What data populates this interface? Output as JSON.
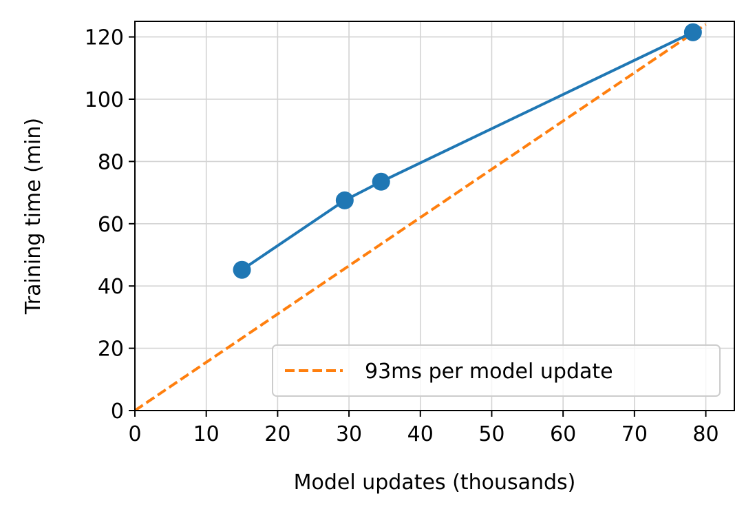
{
  "chart_data": {
    "type": "line",
    "xlabel": "Model updates (thousands)",
    "ylabel": "Training time (min)",
    "xlim": [
      0,
      84
    ],
    "ylim": [
      0,
      125
    ],
    "xticks": [
      0,
      10,
      20,
      30,
      40,
      50,
      60,
      70,
      80
    ],
    "yticks": [
      0,
      20,
      40,
      60,
      80,
      100,
      120
    ],
    "grid": true,
    "legend_position": "lower-right",
    "series": [
      {
        "style": "solid-with-markers",
        "color": "#1f77b4",
        "x": [
          15.0,
          29.4,
          34.5,
          78.2
        ],
        "y": [
          45.2,
          67.5,
          73.5,
          121.5
        ]
      },
      {
        "name": "93ms per model update",
        "style": "dashed",
        "color": "#ff7f0e",
        "x": [
          0,
          80
        ],
        "y": [
          0,
          124
        ]
      }
    ]
  }
}
